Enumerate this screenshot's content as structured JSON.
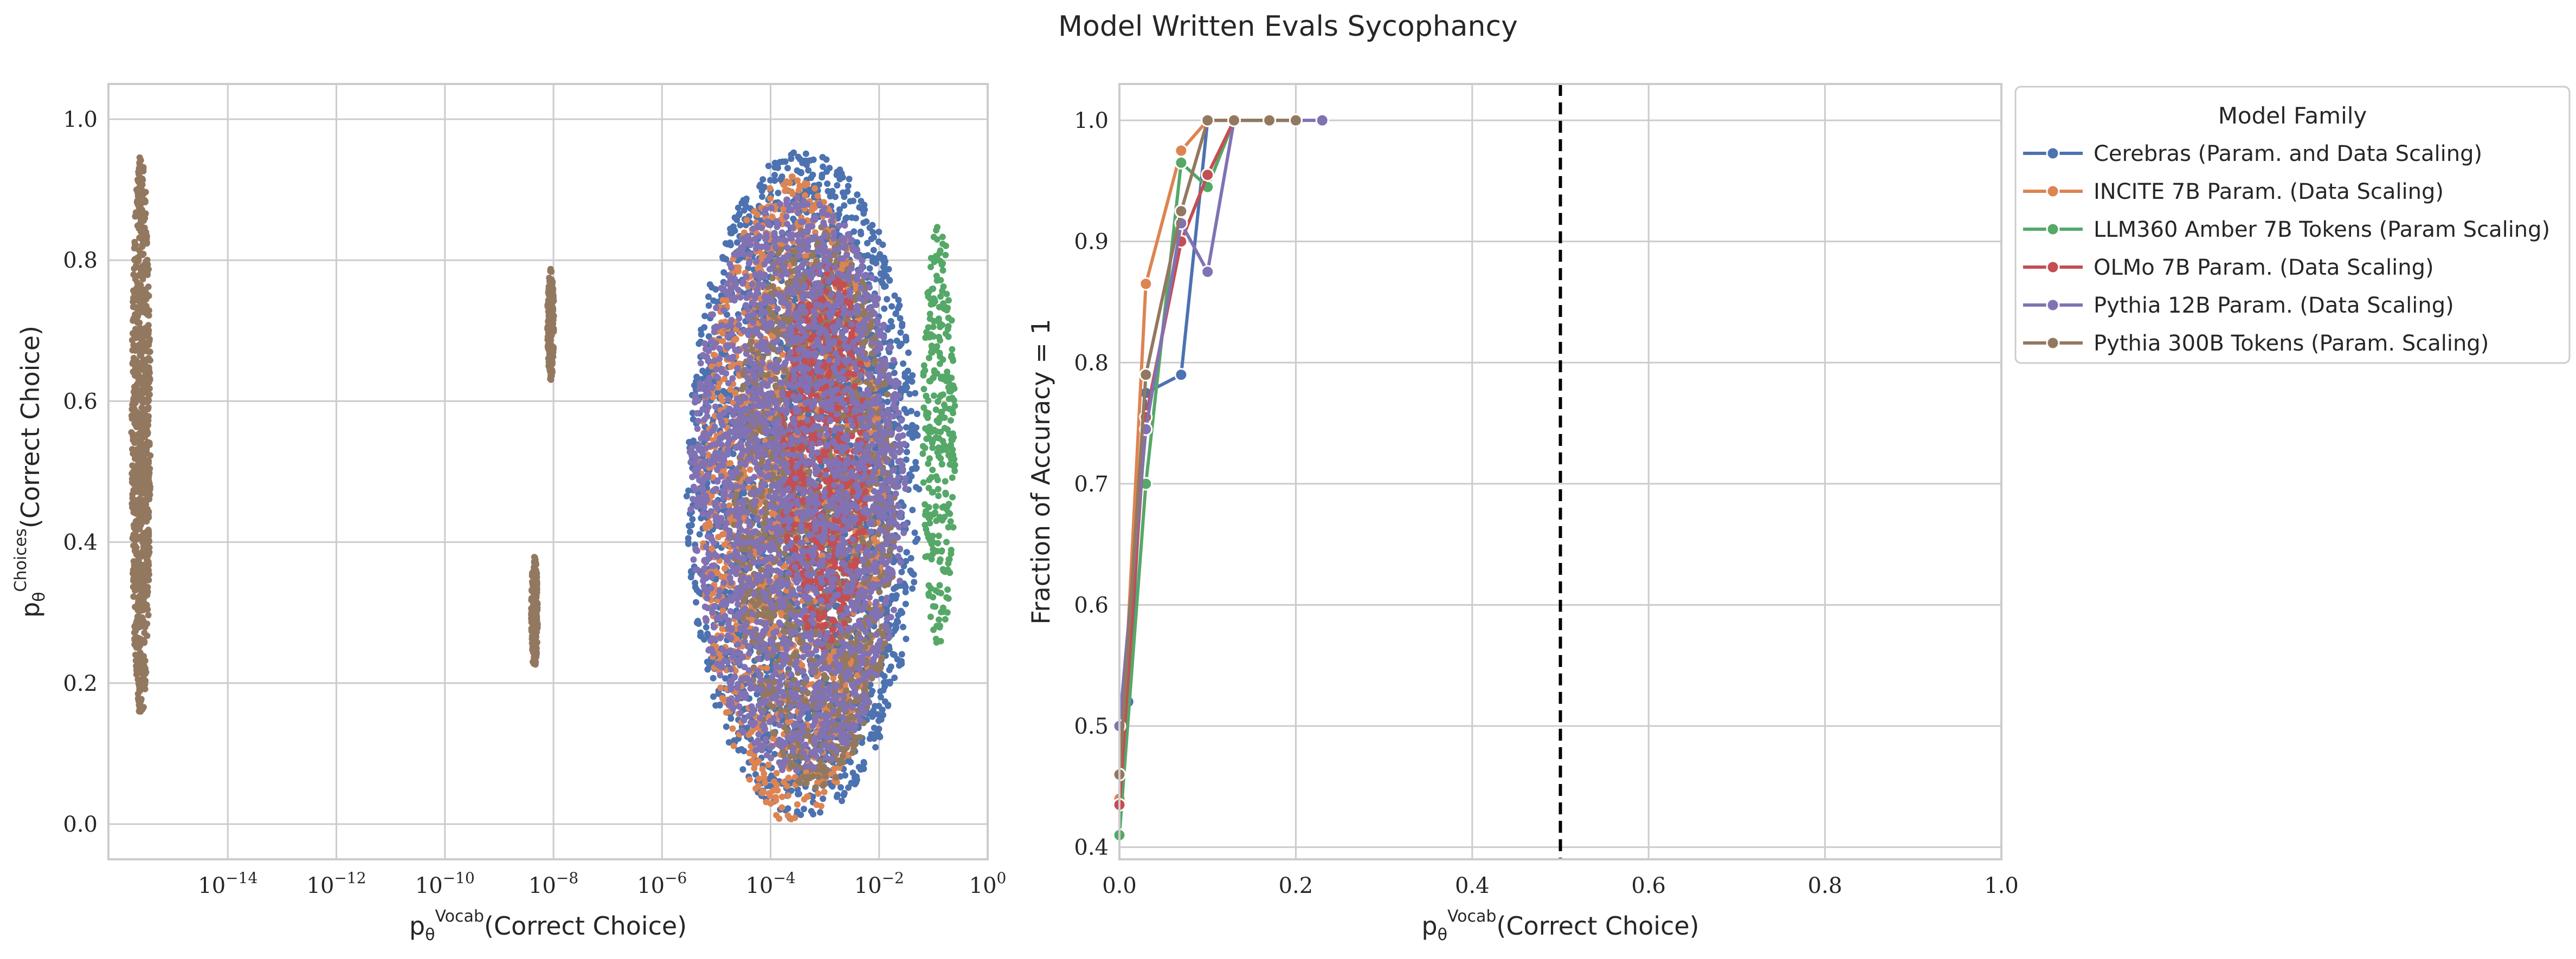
{
  "title": "Model Written Evals Sycophancy",
  "colors": {
    "cerebras": "#4c72b0",
    "incite": "#dd8452",
    "amber": "#55a868",
    "olmo": "#c44e52",
    "pythia12b": "#8172b3",
    "pythia300b": "#937860",
    "grid": "#cccccc",
    "frame": "#cccccc",
    "refline": "#000000"
  },
  "chart_data": [
    {
      "type": "scatter",
      "xscale": "log",
      "xlabel_prefix": "p",
      "xlabel_sub": "θ",
      "xlabel_sup": "Vocab",
      "xlabel_suffix": "(Correct Choice)",
      "ylabel_prefix": "p",
      "ylabel_sub": "θ",
      "ylabel_sup": "Choices",
      "ylabel_suffix": "(Correct Choice)",
      "xlim_log10": [
        -16.2,
        0
      ],
      "ylim": [
        -0.05,
        1.05
      ],
      "xticks": [
        {
          "exp": -14,
          "base": "10",
          "sup": "−14"
        },
        {
          "exp": -12,
          "base": "10",
          "sup": "−12"
        },
        {
          "exp": -10,
          "base": "10",
          "sup": "−10"
        },
        {
          "exp": -8,
          "base": "10",
          "sup": "−8"
        },
        {
          "exp": -6,
          "base": "10",
          "sup": "−6"
        },
        {
          "exp": -4,
          "base": "10",
          "sup": "−4"
        },
        {
          "exp": -2,
          "base": "10",
          "sup": "−2"
        },
        {
          "exp": 0,
          "base": "10",
          "sup": "0"
        }
      ],
      "yticks": [
        "0.0",
        "0.2",
        "0.4",
        "0.6",
        "0.8",
        "1.0"
      ],
      "clusters": [
        {
          "series": "pythia300b",
          "cx_log10": -15.6,
          "cy": 0.55,
          "wx": 0.35,
          "hy": 0.8,
          "n": 900
        },
        {
          "series": "pythia300b",
          "cx_log10": -8.05,
          "cy": 0.71,
          "wx": 0.12,
          "hy": 0.16,
          "n": 180
        },
        {
          "series": "pythia300b",
          "cx_log10": -8.35,
          "cy": 0.3,
          "wx": 0.12,
          "hy": 0.16,
          "n": 180
        },
        {
          "series": "cerebras",
          "cx_log10": -3.4,
          "cy": 0.48,
          "wx": 4.3,
          "hy": 0.95,
          "n": 2600
        },
        {
          "series": "amber",
          "cx_log10": -0.9,
          "cy": 0.55,
          "wx": 0.6,
          "hy": 0.6,
          "n": 300
        },
        {
          "series": "incite",
          "cx_log10": -3.6,
          "cy": 0.46,
          "wx": 3.4,
          "hy": 0.92,
          "n": 1600
        },
        {
          "series": "pythia300b",
          "cx_log10": -3.2,
          "cy": 0.45,
          "wx": 3.0,
          "hy": 0.8,
          "n": 1500
        },
        {
          "series": "olmo",
          "cx_log10": -3.0,
          "cy": 0.52,
          "wx": 1.6,
          "hy": 0.55,
          "n": 700
        },
        {
          "series": "pythia12b",
          "cx_log10": -3.5,
          "cy": 0.48,
          "wx": 4.0,
          "hy": 0.82,
          "n": 2200
        }
      ]
    },
    {
      "type": "line",
      "xlabel_prefix": "p",
      "xlabel_sub": "θ",
      "xlabel_sup": "Vocab",
      "xlabel_suffix": "(Correct Choice)",
      "ylabel": "Fraction of Accuracy = 1",
      "xlim": [
        0.0,
        1.0
      ],
      "ylim": [
        0.39,
        1.03
      ],
      "xticks": [
        "0.0",
        "0.2",
        "0.4",
        "0.6",
        "0.8",
        "1.0"
      ],
      "yticks": [
        "0.4",
        "0.5",
        "0.6",
        "0.7",
        "0.8",
        "0.9",
        "1.0"
      ],
      "vline_x": 0.5,
      "legend_title": "Model Family",
      "legend_position": "outside upper-right",
      "series": [
        {
          "key": "cerebras",
          "name": "Cerebras (Param. and Data Scaling)",
          "x": [
            0.0,
            0.01,
            0.03,
            0.07,
            0.1,
            0.13,
            0.17,
            0.2
          ],
          "y": [
            0.44,
            0.52,
            0.775,
            0.79,
            1.0,
            1.0,
            1.0,
            1.0
          ]
        },
        {
          "key": "incite",
          "name": "INCITE 7B Param. (Data Scaling)",
          "x": [
            0.0,
            0.03,
            0.07,
            0.1,
            0.13
          ],
          "y": [
            0.44,
            0.865,
            0.975,
            1.0,
            1.0
          ]
        },
        {
          "key": "amber",
          "name": "LLM360 Amber 7B Tokens (Param Scaling)",
          "x": [
            0.0,
            0.03,
            0.07,
            0.1,
            0.13,
            0.17,
            0.2
          ],
          "y": [
            0.41,
            0.7,
            0.965,
            0.945,
            1.0,
            1.0,
            1.0
          ]
        },
        {
          "key": "olmo",
          "name": "OLMo 7B Param. (Data Scaling)",
          "x": [
            0.0,
            0.03,
            0.07,
            0.1,
            0.13
          ],
          "y": [
            0.435,
            0.755,
            0.9,
            0.955,
            1.0
          ]
        },
        {
          "key": "pythia12b",
          "name": "Pythia 12B Param. (Data Scaling)",
          "x": [
            0.0,
            0.03,
            0.07,
            0.1,
            0.13,
            0.17,
            0.2,
            0.23
          ],
          "y": [
            0.5,
            0.745,
            0.915,
            0.875,
            1.0,
            1.0,
            1.0,
            1.0
          ]
        },
        {
          "key": "pythia300b",
          "name": "Pythia 300B Tokens (Param. Scaling)",
          "x": [
            0.0,
            0.03,
            0.07,
            0.1,
            0.13,
            0.17,
            0.2
          ],
          "y": [
            0.46,
            0.79,
            0.925,
            1.0,
            1.0,
            1.0,
            1.0
          ]
        }
      ]
    }
  ]
}
